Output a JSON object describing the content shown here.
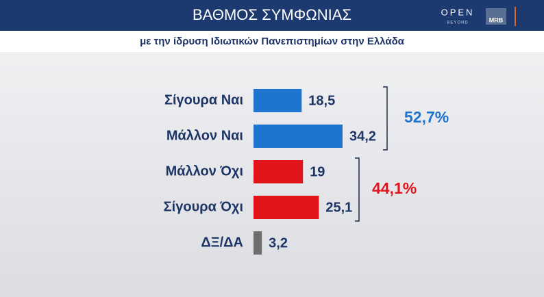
{
  "chart_data": {
    "type": "bar",
    "title": "ΒΑΘΜΟΣ ΣΥΜΦΩΝΙΑΣ",
    "subtitle": "με την ίδρυση Ιδιωτικών Πανεπιστημίων στην Ελλάδα",
    "categories": [
      "Σίγουρα Ναι",
      "Μάλλον Ναι",
      "Μάλλον Όχι",
      "Σίγουρα Όχι",
      "ΔΞ/ΔΑ"
    ],
    "values": [
      18.5,
      34.2,
      19,
      25.1,
      3.2
    ],
    "value_labels": [
      "18,5",
      "34,2",
      "19",
      "25,1",
      "3,2"
    ],
    "colors": [
      "#1f74d0",
      "#1f74d0",
      "#e2141b",
      "#e2141b",
      "#6e6e6e"
    ],
    "annotations": [
      {
        "value": 52.7,
        "label": "52,7%",
        "color": "#1f74d0"
      },
      {
        "value": 44.1,
        "label": "44,1%",
        "color": "#e2141b"
      }
    ]
  },
  "logos": [
    "OPEN",
    "BEYOND",
    "MRB"
  ]
}
